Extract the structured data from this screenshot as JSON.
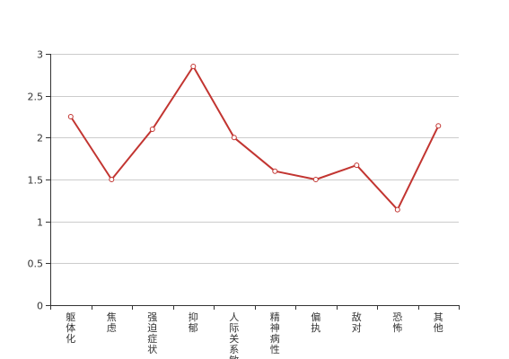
{
  "chart_data": {
    "type": "line",
    "title": "",
    "xlabel": "",
    "ylabel": "",
    "categories": [
      "躯体化",
      "焦虑",
      "强迫症状",
      "抑郁",
      "人际关系敏感",
      "精神病性",
      "偏执",
      "敌对",
      "恐怖",
      "其他"
    ],
    "series": [
      {
        "values": [
          2.25,
          1.5,
          2.1,
          2.85,
          2.0,
          1.6,
          1.5,
          1.67,
          1.14,
          2.14
        ]
      }
    ],
    "ylim": [
      0,
      3
    ],
    "yticks": [
      "0",
      "0.5",
      "1",
      "1.5",
      "2",
      "2.5",
      "3"
    ],
    "grid": true,
    "legend": "none",
    "colors": {
      "line": "#c23531",
      "grid": "#cccccc",
      "axis": "#333333",
      "text": "#333333"
    }
  }
}
